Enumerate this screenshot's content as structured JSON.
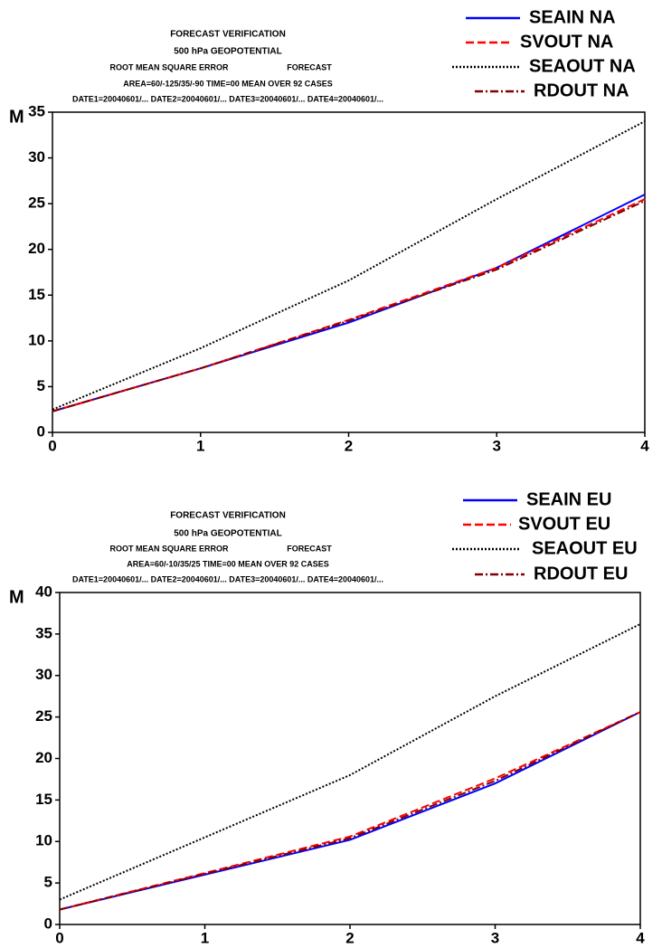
{
  "chart_data": [
    {
      "type": "line",
      "title": "FORECAST VERIFICATION",
      "subtitle": "500 hPa GEOPOTENTIAL",
      "annotations": [
        "ROOT MEAN SQUARE ERROR",
        "FORECAST",
        "AREA=60/-125/35/-90    TIME=00    MEAN OVER  92 CASES",
        "DATE1=20040601/... DATE2=20040601/... DATE3=20040601/... DATE4=20040601/..."
      ],
      "y_label": "M",
      "x": [
        0,
        1,
        2,
        3,
        4
      ],
      "xlim": [
        0,
        4
      ],
      "xticks": [
        0,
        1,
        2,
        3,
        4
      ],
      "ylim": [
        0,
        35
      ],
      "yticks": [
        0,
        5,
        10,
        15,
        20,
        25,
        30,
        35
      ],
      "series": [
        {
          "name": "SEAIN NA",
          "color": "#0000ff",
          "values": [
            2.3,
            7,
            12,
            18,
            26
          ]
        },
        {
          "name": "SVOUT NA",
          "color": "#ff0000",
          "values": [
            2.3,
            7,
            12.3,
            18,
            25.5
          ]
        },
        {
          "name": "SEAOUT NA",
          "color": "#000000",
          "values": [
            2.5,
            9.2,
            16.6,
            25.5,
            34
          ]
        },
        {
          "name": "RDOUT NA",
          "color": "#800000",
          "values": [
            2.3,
            7,
            12.2,
            17.8,
            25.3
          ]
        }
      ]
    },
    {
      "type": "line",
      "title": "FORECAST VERIFICATION",
      "subtitle": "500 hPa GEOPOTENTIAL",
      "annotations": [
        "ROOT MEAN SQUARE ERROR",
        "FORECAST",
        "AREA=60/-10/35/25    TIME=00    MEAN OVER  92 CASES",
        "DATE1=20040601/... DATE2=20040601/... DATE3=20040601/... DATE4=20040601/..."
      ],
      "y_label": "M",
      "x": [
        0,
        1,
        2,
        3,
        4
      ],
      "xlim": [
        0,
        4
      ],
      "xticks": [
        0,
        1,
        2,
        3,
        4
      ],
      "ylim": [
        0,
        40
      ],
      "yticks": [
        0,
        5,
        10,
        15,
        20,
        25,
        30,
        35,
        40
      ],
      "series": [
        {
          "name": "SEAIN EU",
          "color": "#0000ff",
          "values": [
            1.8,
            6,
            10.2,
            17,
            25.6
          ]
        },
        {
          "name": "SVOUT EU",
          "color": "#ff0000",
          "values": [
            1.8,
            6.2,
            10.6,
            17.6,
            25.6
          ]
        },
        {
          "name": "SEAOUT EU",
          "color": "#000000",
          "values": [
            3,
            10.5,
            18,
            27.5,
            36.2
          ]
        },
        {
          "name": "RDOUT EU",
          "color": "#800000",
          "values": [
            1.8,
            6.1,
            10.4,
            17.3,
            25.6
          ]
        }
      ]
    }
  ]
}
